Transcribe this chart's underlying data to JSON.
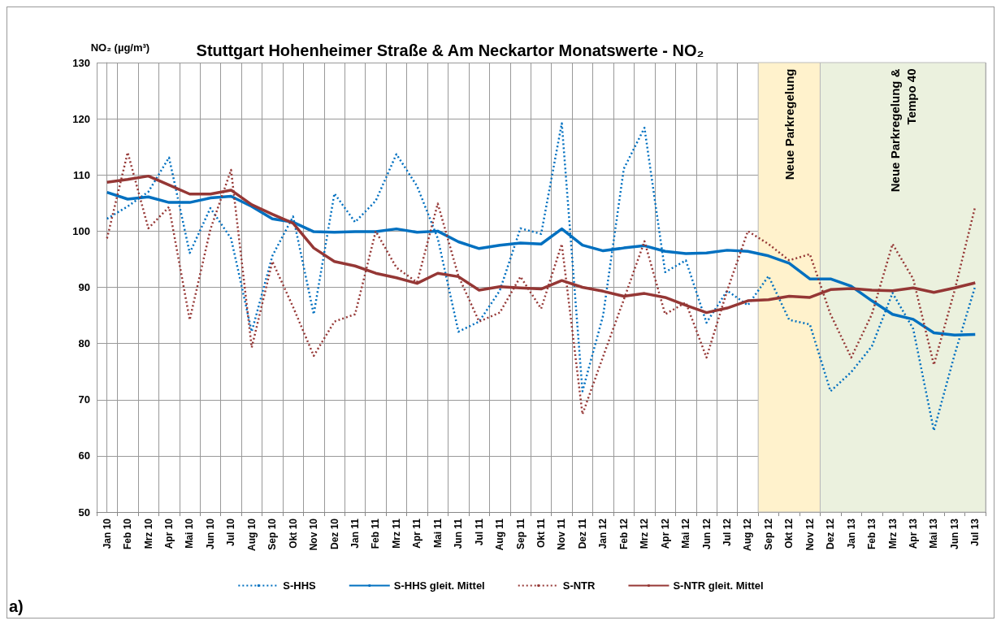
{
  "chart_data": {
    "type": "line",
    "title": "Stuttgart Hohenheimer Straße & Am Neckartor Monatswerte - NO₂",
    "ylabel": "NO₂ (µg/m³)",
    "categories": [
      "Jan 10",
      "Feb 10",
      "Mrz 10",
      "Apr 10",
      "Mai 10",
      "Jun 10",
      "Jul 10",
      "Aug 10",
      "Sep 10",
      "Okt 10",
      "Nov 10",
      "Dez 10",
      "Jan 11",
      "Feb 11",
      "Mrz 11",
      "Apr 11",
      "Mai 11",
      "Jun 11",
      "Jul 11",
      "Aug 11",
      "Sep 11",
      "Okt 11",
      "Nov 11",
      "Dez 11",
      "Jan 12",
      "Feb 12",
      "Mrz 12",
      "Apr 12",
      "Mai 12",
      "Jun 12",
      "Jul 12",
      "Aug 12",
      "Sep 12",
      "Okt 12",
      "Nov 12",
      "Dez 12",
      "Jan 13",
      "Feb 13",
      "Mrz 13",
      "Apr 13",
      "Mai 13",
      "Jun 13",
      "Jul 13"
    ],
    "series": [
      {
        "name": "S-HHS",
        "color": "#0070c0",
        "line_style": "dotted",
        "values": [
          102.2,
          104.4,
          107,
          113.1,
          96.1,
          104.1,
          98.7,
          82.1,
          95.6,
          102.6,
          85.2,
          106.7,
          101.6,
          105.4,
          113.7,
          108,
          98.7,
          82.1,
          83.9,
          89.4,
          100.5,
          99.5,
          119.2,
          71.5,
          85,
          111.1,
          118.4,
          92.7,
          94.8,
          83.7,
          89.4,
          86.8,
          92,
          84.2,
          83.4,
          71.5,
          74.9,
          79.5,
          89,
          82.6,
          64.5,
          78,
          90.2
        ]
      },
      {
        "name": "S-HHS gleit. Mittel",
        "color": "#0070c0",
        "line_style": "solid",
        "values": [
          106.9,
          105.7,
          106.1,
          105.1,
          105.1,
          105.9,
          106.2,
          104.4,
          102.2,
          101.6,
          99.9,
          99.8,
          99.9,
          99.9,
          100.4,
          99.8,
          100,
          98.1,
          96.9,
          97.5,
          97.9,
          97.7,
          100.4,
          97.5,
          96.5,
          97,
          97.4,
          96.4,
          96,
          96.1,
          96.6,
          96.4,
          95.6,
          94.3,
          91.5,
          91.5,
          90.2,
          87.6,
          85.2,
          84.3,
          81.9,
          81.5,
          81.6
        ]
      },
      {
        "name": "S-NTR",
        "color": "#953735",
        "line_style": "dotted",
        "values": [
          98.7,
          114,
          100.5,
          104.3,
          84.2,
          100.3,
          110.9,
          79.3,
          94.6,
          86.5,
          77.8,
          83.9,
          85.2,
          100,
          93.5,
          90.9,
          104.9,
          92,
          83.9,
          85.5,
          91.9,
          86.2,
          97.7,
          67.4,
          77.7,
          87.8,
          98.2,
          85.2,
          87.3,
          77.5,
          89.4,
          100,
          97.7,
          94.8,
          95.9,
          85.2,
          77.5,
          85.2,
          97.7,
          91.5,
          76.2,
          89.4,
          104.4
        ]
      },
      {
        "name": "S-NTR gleit. Mittel",
        "color": "#953735",
        "line_style": "solid",
        "values": [
          108.7,
          109.2,
          109.8,
          108.2,
          106.6,
          106.6,
          107.3,
          104.7,
          103,
          101.4,
          97,
          94.6,
          93.8,
          92.5,
          91.7,
          90.7,
          92.5,
          91.9,
          89.5,
          90.1,
          89.9,
          89.7,
          91.2,
          90,
          89.3,
          88.4,
          88.9,
          88.2,
          86.8,
          85.5,
          86.3,
          87.6,
          87.8,
          88.4,
          88.2,
          89.6,
          89.8,
          89.5,
          89.4,
          89.9,
          89.1,
          89.9,
          90.8
        ]
      }
    ],
    "ylim": [
      50,
      130
    ],
    "yticks": [
      50,
      60,
      70,
      80,
      90,
      100,
      110,
      120,
      130
    ],
    "grid": true,
    "legend": "bottom",
    "marker": "none",
    "bands": [
      {
        "axis": "x",
        "from": "Sep 12",
        "to": "Nov 12",
        "label": "Neue Parkregelung",
        "color": "#fff2cc"
      },
      {
        "axis": "x",
        "from": "Dez 12",
        "to": "Jul 13",
        "label": "Neue Parkregelung & Tempo 40",
        "color": "#ebf1de"
      }
    ],
    "annotations": [
      "a)"
    ]
  }
}
